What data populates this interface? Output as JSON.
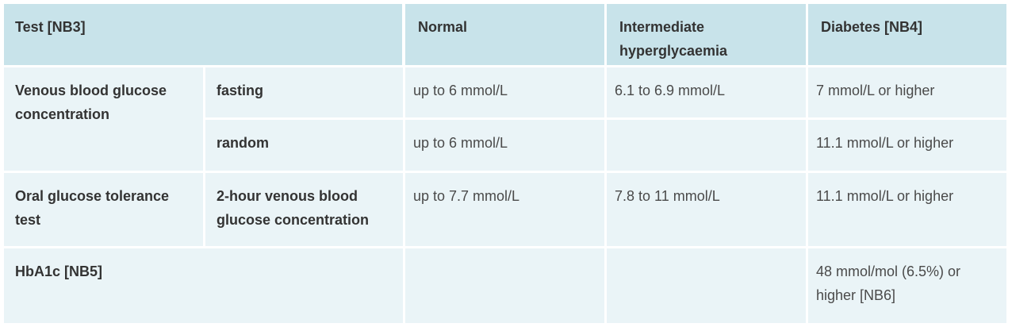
{
  "header": {
    "test": "Test [NB3]",
    "normal": "Normal",
    "intermediate": "Intermediate hyperglycaemia",
    "diabetes": "Diabetes [NB4]"
  },
  "rows": [
    {
      "test": "Venous blood glucose concentration",
      "sub": "fasting",
      "normal": "up to 6 mmol/L",
      "intermediate": "6.1 to 6.9 mmol/L",
      "diabetes": "7 mmol/L or higher"
    },
    {
      "test": "",
      "sub": "random",
      "normal": "up to 6 mmol/L",
      "intermediate": "",
      "diabetes": "11.1 mmol/L or higher"
    },
    {
      "test": "Oral glucose tolerance test",
      "sub": "2-hour venous blood glucose concentration",
      "normal": "up to 7.7 mmol/L",
      "intermediate": "7.8 to 11 mmol/L",
      "diabetes": "11.1 mmol/L or higher"
    },
    {
      "test": "HbA1c [NB5]",
      "sub": "",
      "normal": "",
      "intermediate": "",
      "diabetes": "48 mmol/mol (6.5%) or higher [NB6]"
    }
  ]
}
